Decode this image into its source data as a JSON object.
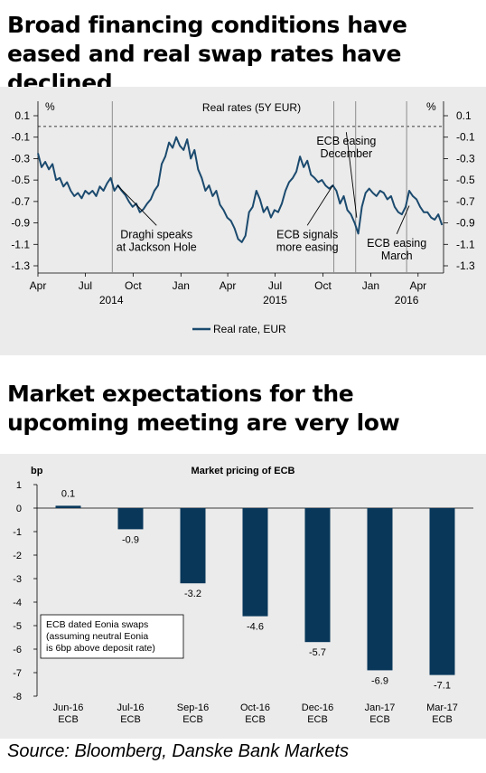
{
  "headings": {
    "top": "Broad financing conditions have eased and real swap rates have declined",
    "bottom": "Market expectations for the upcoming meeting are very low"
  },
  "source": "Source: Bloomberg, Danske Bank Markets",
  "colors": {
    "series": "#1b4a6e",
    "bar": "#08375a",
    "panel_bg": "#ebebeb",
    "vline": "#8c8c8c"
  },
  "chart_data": [
    {
      "type": "line",
      "title": "Real rates (5Y EUR)",
      "ylabel_left": "%",
      "ylabel_right": "%",
      "ylim": [
        -1.4,
        0.15
      ],
      "y_ticks": [
        0.1,
        -0.1,
        -0.3,
        -0.5,
        -0.7,
        -0.9,
        -1.1,
        -1.3
      ],
      "y_tick_labels_left": [
        "0.1",
        "-0.1",
        "-0.3",
        "-0.5",
        "-0.7",
        "-0.9",
        "-1.1",
        "-1.3"
      ],
      "y_tick_labels_right": [
        "0.1",
        "-0.1",
        "-0.3",
        "-0.5",
        "-0.7",
        "-0.9",
        "-1.1",
        "-1.3"
      ],
      "reference_line": {
        "y": 0,
        "style": "dashed"
      },
      "x_range": [
        "2014-04-01",
        "2016-05-20"
      ],
      "x_tick_labels": [
        {
          "date": "2014-04-01",
          "label": "Apr"
        },
        {
          "date": "2014-07-01",
          "label": "Jul"
        },
        {
          "date": "2014-10-01",
          "label": "Oct"
        },
        {
          "date": "2015-01-01",
          "label": "Jan"
        },
        {
          "date": "2015-04-01",
          "label": "Apr"
        },
        {
          "date": "2015-07-01",
          "label": "Jul"
        },
        {
          "date": "2015-10-01",
          "label": "Oct"
        },
        {
          "date": "2016-01-01",
          "label": "Jan"
        },
        {
          "date": "2016-04-01",
          "label": "Apr"
        }
      ],
      "year_labels": [
        {
          "date": "2014-08-20",
          "label": "2014"
        },
        {
          "date": "2015-07-01",
          "label": "2015"
        },
        {
          "date": "2016-03-10",
          "label": "2016"
        }
      ],
      "event_lines": [
        "2014-08-22",
        "2015-10-22",
        "2015-12-03",
        "2016-03-10"
      ],
      "annotations": [
        {
          "lines": [
            "Draghi speaks",
            "at Jackson Hole"
          ],
          "point": {
            "x": "2014-09-01",
            "y": -0.55
          },
          "label_at": {
            "x": "2014-11-15",
            "y": -0.94
          }
        },
        {
          "lines": [
            "ECB signals",
            "more easing"
          ],
          "point": {
            "x": "2015-10-20",
            "y": -0.55
          },
          "label_at": {
            "x": "2015-09-01",
            "y": -0.94
          }
        },
        {
          "lines": [
            "ECB easing",
            "December"
          ],
          "point": {
            "x": "2015-12-05",
            "y": -0.85
          },
          "label_at": {
            "x": "2015-11-15",
            "y": -0.07
          }
        },
        {
          "lines": [
            "ECB easing",
            "March"
          ],
          "point": {
            "x": "2016-03-15",
            "y": -0.74
          },
          "label_at": {
            "x": "2016-02-20",
            "y": -1.02
          }
        }
      ],
      "legend": {
        "position": "bottom-center",
        "label": "Real rate, EUR"
      },
      "series": [
        {
          "name": "Real rate, EUR",
          "x": [
            "2014-04-01",
            "2014-04-08",
            "2014-04-15",
            "2014-04-22",
            "2014-04-29",
            "2014-05-06",
            "2014-05-13",
            "2014-05-20",
            "2014-05-27",
            "2014-06-03",
            "2014-06-10",
            "2014-06-17",
            "2014-06-24",
            "2014-07-01",
            "2014-07-08",
            "2014-07-15",
            "2014-07-22",
            "2014-07-29",
            "2014-08-05",
            "2014-08-12",
            "2014-08-19",
            "2014-08-26",
            "2014-09-02",
            "2014-09-09",
            "2014-09-16",
            "2014-09-23",
            "2014-09-30",
            "2014-10-07",
            "2014-10-14",
            "2014-10-21",
            "2014-10-28",
            "2014-11-04",
            "2014-11-11",
            "2014-11-18",
            "2014-11-25",
            "2014-12-02",
            "2014-12-09",
            "2014-12-16",
            "2014-12-23",
            "2014-12-30",
            "2015-01-06",
            "2015-01-13",
            "2015-01-20",
            "2015-01-27",
            "2015-02-03",
            "2015-02-10",
            "2015-02-17",
            "2015-02-24",
            "2015-03-03",
            "2015-03-10",
            "2015-03-17",
            "2015-03-24",
            "2015-03-31",
            "2015-04-07",
            "2015-04-14",
            "2015-04-21",
            "2015-04-28",
            "2015-05-05",
            "2015-05-12",
            "2015-05-19",
            "2015-05-26",
            "2015-06-02",
            "2015-06-09",
            "2015-06-16",
            "2015-06-23",
            "2015-06-30",
            "2015-07-07",
            "2015-07-14",
            "2015-07-21",
            "2015-07-28",
            "2015-08-04",
            "2015-08-11",
            "2015-08-18",
            "2015-08-25",
            "2015-09-01",
            "2015-09-08",
            "2015-09-15",
            "2015-09-22",
            "2015-09-29",
            "2015-10-06",
            "2015-10-13",
            "2015-10-20",
            "2015-10-27",
            "2015-11-03",
            "2015-11-10",
            "2015-11-17",
            "2015-11-24",
            "2015-12-01",
            "2015-12-08",
            "2015-12-15",
            "2015-12-22",
            "2015-12-29",
            "2016-01-05",
            "2016-01-12",
            "2016-01-19",
            "2016-01-26",
            "2016-02-02",
            "2016-02-09",
            "2016-02-16",
            "2016-02-23",
            "2016-03-01",
            "2016-03-08",
            "2016-03-15",
            "2016-03-22",
            "2016-03-29",
            "2016-04-05",
            "2016-04-12",
            "2016-04-19",
            "2016-04-26",
            "2016-05-03",
            "2016-05-10",
            "2016-05-17"
          ],
          "y": [
            -0.25,
            -0.38,
            -0.33,
            -0.4,
            -0.35,
            -0.5,
            -0.48,
            -0.56,
            -0.52,
            -0.6,
            -0.65,
            -0.62,
            -0.67,
            -0.6,
            -0.63,
            -0.6,
            -0.65,
            -0.56,
            -0.6,
            -0.53,
            -0.48,
            -0.6,
            -0.55,
            -0.6,
            -0.64,
            -0.7,
            -0.75,
            -0.72,
            -0.8,
            -0.77,
            -0.72,
            -0.68,
            -0.6,
            -0.55,
            -0.35,
            -0.28,
            -0.15,
            -0.2,
            -0.1,
            -0.18,
            -0.22,
            -0.12,
            -0.3,
            -0.22,
            -0.4,
            -0.48,
            -0.6,
            -0.55,
            -0.65,
            -0.6,
            -0.73,
            -0.78,
            -0.85,
            -0.88,
            -0.95,
            -1.05,
            -1.08,
            -1.02,
            -0.8,
            -0.75,
            -0.6,
            -0.68,
            -0.8,
            -0.75,
            -0.85,
            -0.78,
            -0.8,
            -0.72,
            -0.6,
            -0.52,
            -0.48,
            -0.42,
            -0.28,
            -0.38,
            -0.32,
            -0.45,
            -0.48,
            -0.52,
            -0.5,
            -0.55,
            -0.58,
            -0.55,
            -0.6,
            -0.72,
            -0.65,
            -0.78,
            -0.82,
            -0.9,
            -1.0,
            -0.75,
            -0.62,
            -0.58,
            -0.62,
            -0.65,
            -0.6,
            -0.62,
            -0.68,
            -0.65,
            -0.75,
            -0.8,
            -0.82,
            -0.75,
            -0.6,
            -0.65,
            -0.68,
            -0.75,
            -0.8,
            -0.8,
            -0.85,
            -0.87,
            -0.82,
            -0.92
          ]
        }
      ]
    },
    {
      "type": "bar",
      "title": "Market pricing of ECB",
      "ylabel": "bp",
      "ylim": [
        -8,
        1
      ],
      "y_ticks": [
        1,
        0,
        -1,
        -2,
        -3,
        -4,
        -5,
        -6,
        -7,
        -8
      ],
      "y_tick_labels": [
        "1",
        "0",
        "-1",
        "-2",
        "-3",
        "-4",
        "-5",
        "-6",
        "-7",
        "-8"
      ],
      "categories": [
        [
          "Jun-16",
          "ECB"
        ],
        [
          "Jul-16",
          "ECB"
        ],
        [
          "Sep-16",
          "ECB"
        ],
        [
          "Oct-16",
          "ECB"
        ],
        [
          "Dec-16",
          "ECB"
        ],
        [
          "Jan-17",
          "ECB"
        ],
        [
          "Mar-17",
          "ECB"
        ]
      ],
      "values": [
        0.1,
        -0.9,
        -3.2,
        -4.6,
        -5.7,
        -6.9,
        -7.1
      ],
      "value_labels": [
        "0.1",
        "-0.9",
        "-3.2",
        "-4.6",
        "-5.7",
        "-6.9",
        "-7.1"
      ],
      "note_box": [
        "ECB dated Eonia swaps",
        "(assuming neutral Eonia",
        "is 6bp above deposit rate)"
      ]
    }
  ]
}
